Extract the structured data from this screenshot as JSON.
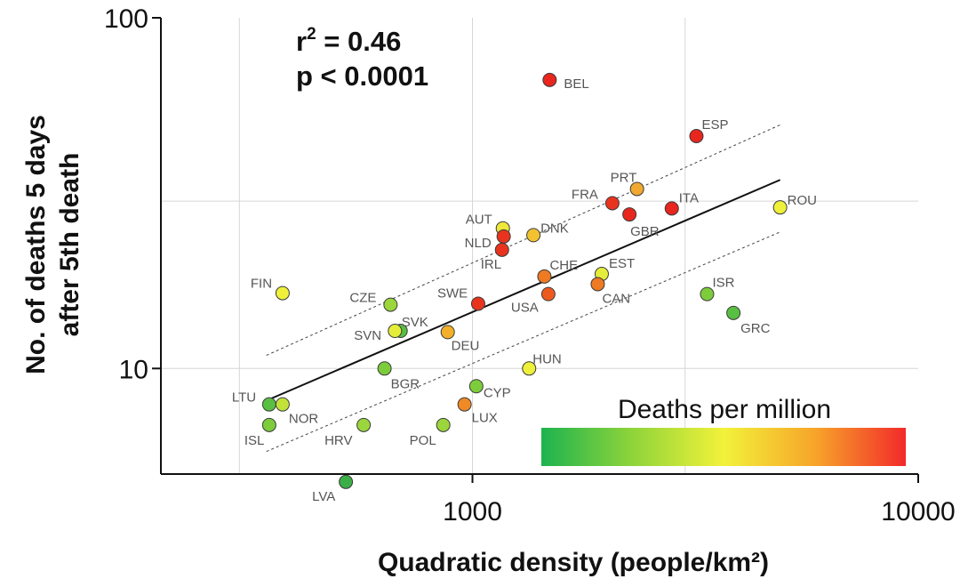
{
  "chart_data": {
    "type": "scatter",
    "xlabel": "Quadratic density (people/km²)",
    "ylabel_line1": "No. of deaths 5 days",
    "ylabel_line2": "after 5th death",
    "x_scale": "log",
    "y_scale": "log",
    "xlim": [
      200,
      10000
    ],
    "ylim": [
      5,
      100
    ],
    "x_ticks": [
      1000,
      10000
    ],
    "x_tick_labels": [
      "1000",
      "10000"
    ],
    "y_ticks": [
      10,
      100
    ],
    "y_tick_labels": [
      "10",
      "100"
    ],
    "grid": true,
    "annotation_r2_prefix": "r",
    "annotation_r2_sup": "2",
    "annotation_r2_value": " = 0.46",
    "annotation_p": "p < 0.0001",
    "colorbar_title": "Deaths per million",
    "colorbar_colors": [
      "#1db34f",
      "#8fd43a",
      "#f2f23a",
      "#f7a52a",
      "#f22a2a"
    ],
    "regression_line": {
      "x": [
        345,
        4900
      ],
      "y": [
        8.1,
        34.5
      ]
    },
    "ci_upper": {
      "x": [
        345,
        4900
      ],
      "y": [
        10.9,
        49.5
      ]
    },
    "ci_lower": {
      "x": [
        345,
        4900
      ],
      "y": [
        5.8,
        24.5
      ]
    },
    "points": [
      {
        "label": "BEL",
        "x": 1490,
        "y": 66.5,
        "color": "#e8261e"
      },
      {
        "label": "ESP",
        "x": 3180,
        "y": 46.0,
        "color": "#e8261e"
      },
      {
        "label": "PRT",
        "x": 2340,
        "y": 32.5,
        "color": "#f0a830"
      },
      {
        "label": "FRA",
        "x": 2060,
        "y": 29.6,
        "color": "#e8341e"
      },
      {
        "label": "ITA",
        "x": 2800,
        "y": 28.6,
        "color": "#e8261e"
      },
      {
        "label": "GBR",
        "x": 2250,
        "y": 27.5,
        "color": "#e8261e"
      },
      {
        "label": "ROU",
        "x": 4900,
        "y": 28.8,
        "color": "#eef03a"
      },
      {
        "label": "AUT",
        "x": 1170,
        "y": 25.1,
        "color": "#eee83a"
      },
      {
        "label": "NLD",
        "x": 1175,
        "y": 23.8,
        "color": "#e8341e"
      },
      {
        "label": "DNK",
        "x": 1370,
        "y": 24.0,
        "color": "#f2c230"
      },
      {
        "label": "IRL",
        "x": 1165,
        "y": 21.8,
        "color": "#e8341e"
      },
      {
        "label": "CHE",
        "x": 1450,
        "y": 18.3,
        "color": "#ee7a22"
      },
      {
        "label": "EST",
        "x": 1950,
        "y": 18.6,
        "color": "#e4ee3a"
      },
      {
        "label": "CAN",
        "x": 1910,
        "y": 17.4,
        "color": "#ee7a22"
      },
      {
        "label": "USA",
        "x": 1480,
        "y": 16.3,
        "color": "#ec5a20"
      },
      {
        "label": "SWE",
        "x": 1030,
        "y": 15.3,
        "color": "#e8341e"
      },
      {
        "label": "ISR",
        "x": 3360,
        "y": 16.3,
        "color": "#7ccc3c"
      },
      {
        "label": "GRC",
        "x": 3850,
        "y": 14.4,
        "color": "#58bf42"
      },
      {
        "label": "FIN",
        "x": 375,
        "y": 16.4,
        "color": "#eef03a"
      },
      {
        "label": "CZE",
        "x": 655,
        "y": 15.2,
        "color": "#9ad63c"
      },
      {
        "label": "SVK",
        "x": 690,
        "y": 12.8,
        "color": "#58bf42"
      },
      {
        "label": "SVN",
        "x": 670,
        "y": 12.8,
        "color": "#e4ee3a"
      },
      {
        "label": "DEU",
        "x": 880,
        "y": 12.7,
        "color": "#f2b02a"
      },
      {
        "label": "HUN",
        "x": 1340,
        "y": 10.0,
        "color": "#eef03a"
      },
      {
        "label": "BGR",
        "x": 635,
        "y": 10.0,
        "color": "#7ccc3c"
      },
      {
        "label": "CYP",
        "x": 1020,
        "y": 8.9,
        "color": "#7ccc3c"
      },
      {
        "label": "LUX",
        "x": 960,
        "y": 7.9,
        "color": "#f08a26"
      },
      {
        "label": "LTU",
        "x": 350,
        "y": 7.9,
        "color": "#58bf42"
      },
      {
        "label": "NOR",
        "x": 375,
        "y": 7.9,
        "color": "#c2e23a"
      },
      {
        "label": "ISL",
        "x": 350,
        "y": 6.9,
        "color": "#7ccc3c"
      },
      {
        "label": "HRV",
        "x": 570,
        "y": 6.9,
        "color": "#9ad63c"
      },
      {
        "label": "POL",
        "x": 860,
        "y": 6.9,
        "color": "#9ad63c"
      },
      {
        "label": "LVA",
        "x": 520,
        "y": 4.75,
        "color": "#3cae46"
      }
    ]
  }
}
